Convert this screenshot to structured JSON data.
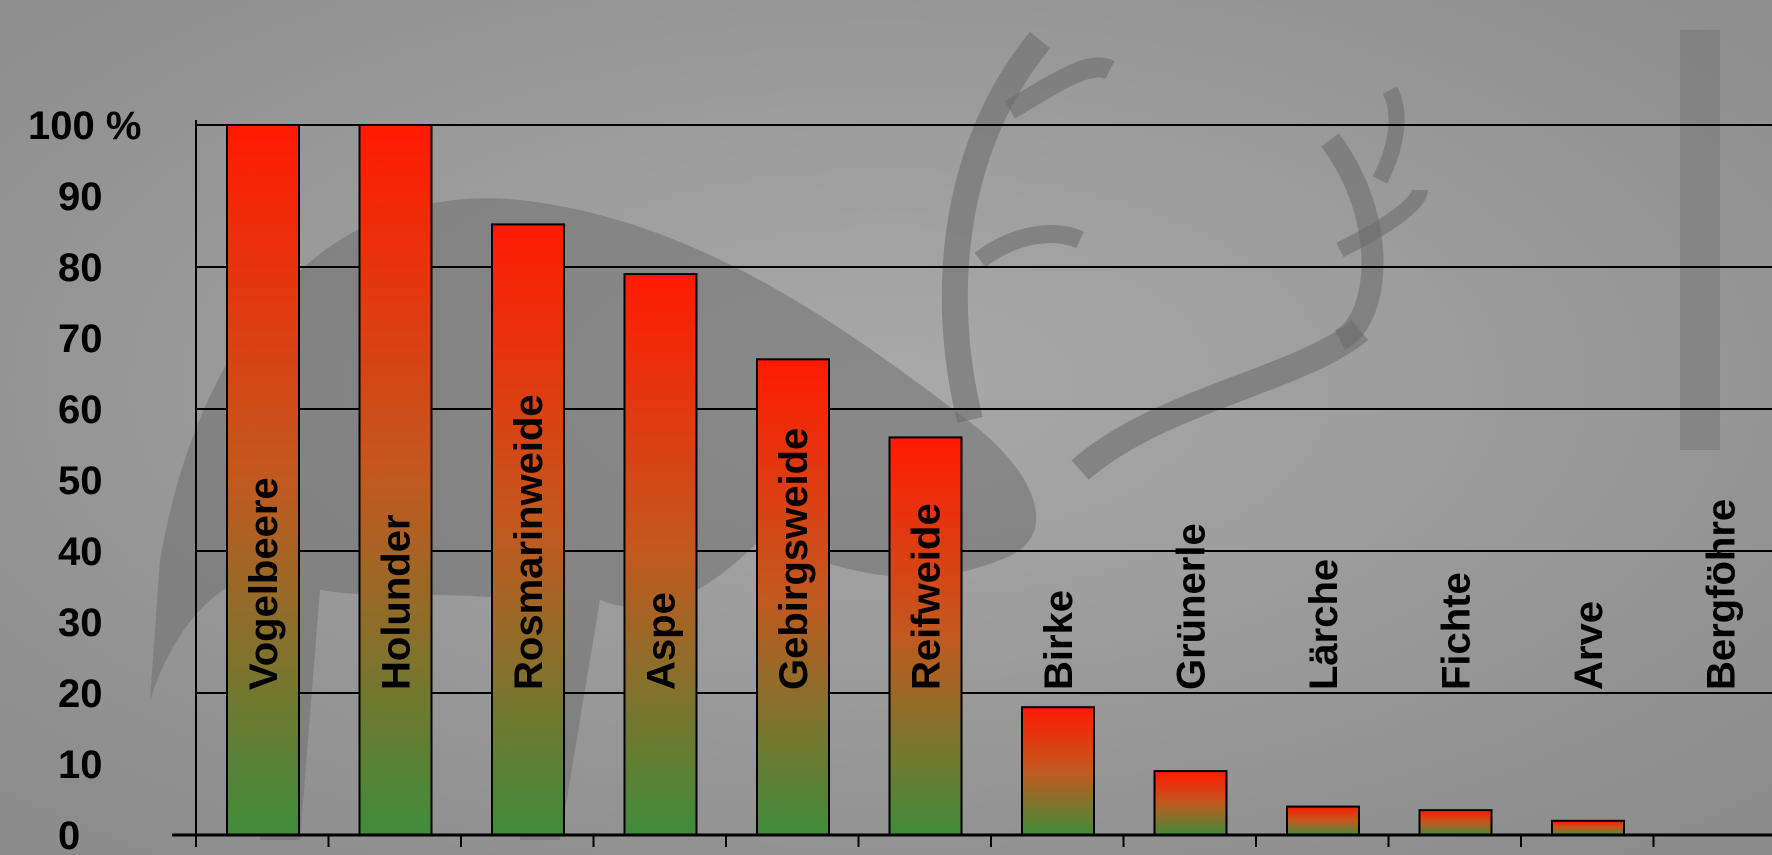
{
  "chart_data": {
    "type": "bar",
    "categories": [
      "Vogelbeere",
      "Holunder",
      "Rosmarinweide",
      "Aspe",
      "Gebirgsweide",
      "Reifweide",
      "Birke",
      "Grünerle",
      "Lärche",
      "Fichte",
      "Arve",
      "Bergföhre"
    ],
    "values": [
      100,
      100,
      86,
      79,
      67,
      56,
      18,
      9,
      4,
      3.5,
      2,
      0
    ],
    "ylim": [
      0,
      100
    ],
    "yticks": [
      "0",
      "10",
      "20",
      "30",
      "40",
      "50",
      "60",
      "70",
      "80",
      "90",
      "100 %"
    ],
    "grid": true,
    "bar_gradient": {
      "top": "#ff1a00",
      "bottom": "#3f8c3a"
    },
    "background": "grayscale photo of a red deer stag"
  }
}
